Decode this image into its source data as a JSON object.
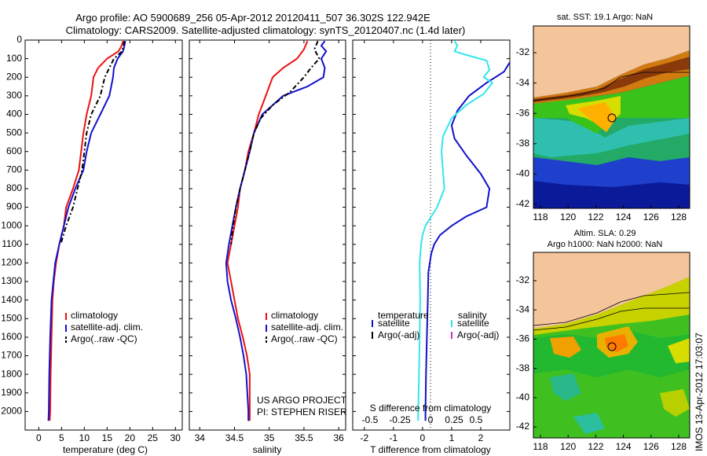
{
  "title_line1": "Argo profile: AO 5900689_256 05-Apr-2012 20120411_507 36.302S 122.942E",
  "title_line2": "Climatology: CARS2009. Satellite-adjusted climatology: synTS_20120407.nc (1.4d later)",
  "colors": {
    "climatology": "#ee1111",
    "satellite": "#1111cc",
    "argo": "#000000",
    "s_satellite": "#33e6ee",
    "argo_adj_s": "#cc33cc",
    "land": "#f4c49a"
  },
  "chart_data": [
    {
      "type": "line",
      "xlabel": "temperature (deg C)",
      "xticks": [
        0,
        5,
        10,
        15,
        20,
        25,
        30
      ],
      "xlim": [
        -3,
        31.5
      ],
      "ylim": [
        0,
        2100
      ],
      "yticks": [
        0,
        100,
        200,
        300,
        400,
        500,
        600,
        700,
        800,
        900,
        1000,
        1100,
        1200,
        1300,
        1400,
        1500,
        1600,
        1700,
        1800,
        1900,
        2000
      ],
      "legend": [
        "climatology",
        "satellite-adj. clim.",
        "Argo(..raw -QC)"
      ],
      "series": [
        {
          "name": "climatology",
          "color": "#ee1111",
          "points": [
            [
              18.5,
              5
            ],
            [
              18.2,
              30
            ],
            [
              17.5,
              60
            ],
            [
              15,
              100
            ],
            [
              13,
              150
            ],
            [
              12,
              200
            ],
            [
              11.5,
              300
            ],
            [
              10.5,
              400
            ],
            [
              9.8,
              500
            ],
            [
              9.3,
              600
            ],
            [
              8.8,
              700
            ],
            [
              7.5,
              800
            ],
            [
              6,
              900
            ],
            [
              5.5,
              1000
            ],
            [
              4.5,
              1100
            ],
            [
              3.8,
              1200
            ],
            [
              3.3,
              1300
            ],
            [
              3,
              1400
            ],
            [
              2.8,
              1600
            ],
            [
              2.6,
              1800
            ],
            [
              2.5,
              2000
            ],
            [
              2.4,
              2050
            ]
          ]
        },
        {
          "name": "satellite-adj. clim.",
          "color": "#1111cc",
          "points": [
            [
              19,
              5
            ],
            [
              18.8,
              30
            ],
            [
              18.5,
              60
            ],
            [
              17.3,
              100
            ],
            [
              16.5,
              150
            ],
            [
              16.3,
              200
            ],
            [
              15.5,
              300
            ],
            [
              13.5,
              400
            ],
            [
              11.5,
              500
            ],
            [
              10.5,
              600
            ],
            [
              9.8,
              700
            ],
            [
              8,
              800
            ],
            [
              6.5,
              900
            ],
            [
              5.5,
              1000
            ],
            [
              4.5,
              1100
            ],
            [
              3.6,
              1200
            ],
            [
              3.2,
              1300
            ],
            [
              2.8,
              1400
            ],
            [
              2.5,
              1600
            ],
            [
              2.3,
              1800
            ],
            [
              2.2,
              2000
            ],
            [
              2.1,
              2050
            ]
          ]
        },
        {
          "name": "Argo(..raw -QC)",
          "color": "#000000",
          "dash": "6,3,2,3",
          "points": [
            [
              18.8,
              5
            ],
            [
              18.6,
              30
            ],
            [
              18.3,
              60
            ],
            [
              16.5,
              100
            ],
            [
              15.5,
              150
            ],
            [
              14.5,
              200
            ],
            [
              13.5,
              300
            ],
            [
              11.5,
              400
            ],
            [
              10.5,
              500
            ],
            [
              10,
              600
            ],
            [
              9.5,
              700
            ],
            [
              8.5,
              800
            ],
            [
              7.5,
              900
            ],
            [
              6,
              1000
            ],
            [
              4.8,
              1100
            ]
          ]
        }
      ]
    },
    {
      "type": "line",
      "xlabel": "salinity",
      "xticks": [
        34,
        34.5,
        35,
        35.5,
        36
      ],
      "xlim": [
        33.85,
        36.1
      ],
      "ylim": [
        0,
        2100
      ],
      "legend": [
        "climatology",
        "satellite-adj. clim.",
        "Argo(..raw -QC)"
      ],
      "annotation": [
        "US ARGO PROJECT",
        "PI: STEPHEN RISER"
      ],
      "series": [
        {
          "name": "climatology",
          "color": "#ee1111",
          "points": [
            [
              35.55,
              5
            ],
            [
              35.5,
              50
            ],
            [
              35.4,
              100
            ],
            [
              35.2,
              150
            ],
            [
              35.05,
              200
            ],
            [
              34.95,
              300
            ],
            [
              34.85,
              400
            ],
            [
              34.78,
              500
            ],
            [
              34.7,
              600
            ],
            [
              34.65,
              700
            ],
            [
              34.58,
              800
            ],
            [
              34.55,
              900
            ],
            [
              34.5,
              1000
            ],
            [
              34.45,
              1100
            ],
            [
              34.4,
              1200
            ],
            [
              34.45,
              1300
            ],
            [
              34.5,
              1400
            ],
            [
              34.55,
              1500
            ],
            [
              34.62,
              1600
            ],
            [
              34.68,
              1700
            ],
            [
              34.72,
              1800
            ],
            [
              34.72,
              2000
            ],
            [
              34.72,
              2050
            ]
          ]
        },
        {
          "name": "satellite-adj. clim.",
          "color": "#1111cc",
          "points": [
            [
              35.8,
              5
            ],
            [
              35.75,
              30
            ],
            [
              35.82,
              60
            ],
            [
              35.75,
              100
            ],
            [
              35.8,
              150
            ],
            [
              35.78,
              200
            ],
            [
              35.55,
              250
            ],
            [
              35.2,
              300
            ],
            [
              34.9,
              400
            ],
            [
              34.78,
              500
            ],
            [
              34.72,
              600
            ],
            [
              34.65,
              700
            ],
            [
              34.58,
              800
            ],
            [
              34.52,
              900
            ],
            [
              34.47,
              1000
            ],
            [
              34.42,
              1100
            ],
            [
              34.38,
              1200
            ],
            [
              34.4,
              1300
            ],
            [
              34.45,
              1400
            ],
            [
              34.52,
              1500
            ],
            [
              34.58,
              1600
            ],
            [
              34.63,
              1700
            ],
            [
              34.67,
              1800
            ],
            [
              34.7,
              2000
            ],
            [
              34.7,
              2050
            ]
          ]
        },
        {
          "name": "Argo(..raw -QC)",
          "color": "#000000",
          "dash": "6,3,2,3",
          "points": [
            [
              35.7,
              5
            ],
            [
              35.65,
              50
            ],
            [
              35.72,
              100
            ],
            [
              35.6,
              150
            ],
            [
              35.5,
              200
            ],
            [
              35.3,
              280
            ],
            [
              35.05,
              350
            ],
            [
              34.88,
              420
            ],
            [
              34.78,
              500
            ],
            [
              34.72,
              600
            ],
            [
              34.65,
              700
            ],
            [
              34.58,
              800
            ],
            [
              34.52,
              900
            ],
            [
              34.48,
              1000
            ],
            [
              34.45,
              1100
            ]
          ]
        }
      ]
    },
    {
      "type": "line",
      "xlabel": "T difference from climatology",
      "xticks": [
        -2,
        -1,
        0,
        1,
        2
      ],
      "xlim": [
        -2.4,
        3.0
      ],
      "ylim": [
        0,
        2100
      ],
      "top_xlabel": "S difference from climatology",
      "top_xticks": [
        "-0.5",
        "-0.25",
        "0",
        "0.25",
        "0.5"
      ],
      "legend_left_title": "temperature",
      "legend_right_title": "salinity",
      "legend": [
        "satellite",
        "Argo(-adj)",
        "satellite",
        "Argo(-adj)"
      ],
      "series": [
        {
          "name": "temperature satellite",
          "color": "#1111cc",
          "points": [
            [
              3.0,
              120
            ],
            [
              2.8,
              170
            ],
            [
              2.2,
              230
            ],
            [
              1.6,
              300
            ],
            [
              1.2,
              380
            ],
            [
              1.0,
              460
            ],
            [
              1.1,
              530
            ],
            [
              1.5,
              620
            ],
            [
              2.0,
              720
            ],
            [
              2.3,
              800
            ],
            [
              2.2,
              900
            ],
            [
              1.5,
              950
            ],
            [
              1.0,
              1000
            ],
            [
              0.6,
              1050
            ],
            [
              0.4,
              1100
            ],
            [
              0.3,
              1150
            ],
            [
              0.2,
              1250
            ],
            [
              0.18,
              1400
            ],
            [
              0.15,
              1600
            ],
            [
              0.12,
              1800
            ],
            [
              0.1,
              2000
            ],
            [
              0.1,
              2050
            ]
          ]
        },
        {
          "name": "salinity satellite",
          "color": "#33e6ee",
          "points": [
            [
              1.1,
              5
            ],
            [
              1.2,
              30
            ],
            [
              1.1,
              60
            ],
            [
              1.5,
              80
            ],
            [
              2.2,
              110
            ],
            [
              2.3,
              160
            ],
            [
              2.1,
              200
            ],
            [
              2.4,
              230
            ],
            [
              2.1,
              290
            ],
            [
              1.5,
              350
            ],
            [
              1.0,
              420
            ],
            [
              0.7,
              520
            ],
            [
              0.65,
              600
            ],
            [
              0.7,
              700
            ],
            [
              0.75,
              800
            ],
            [
              0.5,
              900
            ],
            [
              0.3,
              950
            ],
            [
              0.1,
              1000
            ],
            [
              0.0,
              1050
            ],
            [
              -0.05,
              1100
            ],
            [
              -0.1,
              1200
            ],
            [
              -0.08,
              1400
            ],
            [
              -0.1,
              1600
            ],
            [
              -0.12,
              1800
            ],
            [
              -0.15,
              2000
            ],
            [
              -0.15,
              2050
            ]
          ]
        }
      ]
    },
    {
      "type": "heatmap",
      "title": "sat. SST: 19.1  Argo: NaN",
      "xticks": [
        "118",
        "120",
        "122",
        "124",
        "126",
        "128"
      ],
      "yticks": [
        "-32",
        "-34",
        "-36",
        "-38",
        "-40",
        "-42"
      ]
    },
    {
      "type": "heatmap",
      "title_line1": "Altim. SLA: 0.29",
      "title_line2": "Argo h1000: NaN h2000: NaN",
      "xticks": [
        "118",
        "120",
        "122",
        "124",
        "126",
        "128"
      ],
      "yticks": [
        "-32",
        "-34",
        "-36",
        "-38",
        "-40",
        "-42"
      ]
    }
  ],
  "side_label": "IMOS 13-Apr-2012 17:03:07"
}
